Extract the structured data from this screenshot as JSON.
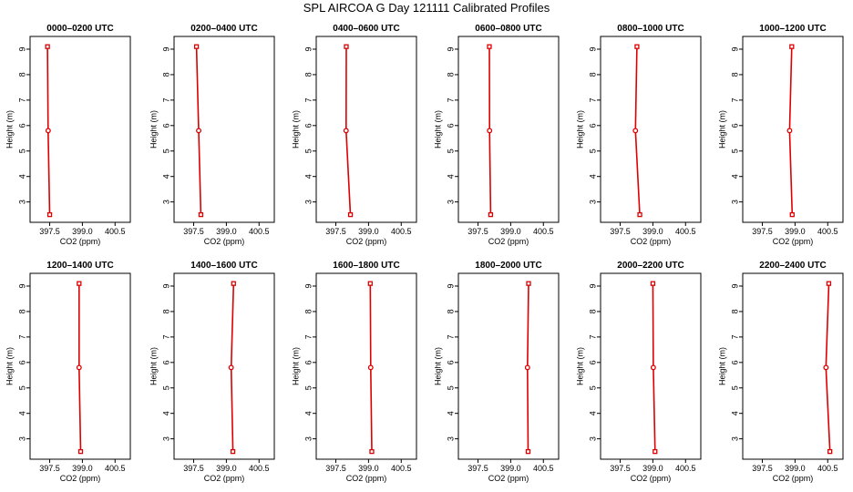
{
  "title": "SPL AIRCOA G  Day 121111  Calibrated Profiles",
  "chart_data": [
    {
      "type": "line",
      "title": "0000–0200 UTC",
      "xlabel": "CO2 (ppm)",
      "ylabel": "Height (m)",
      "xlim": [
        396.6,
        401.2
      ],
      "ylim": [
        2.2,
        9.5
      ],
      "xticks": [
        "397.5",
        "399.0",
        "400.5"
      ],
      "yticks": [
        "3",
        "4",
        "5",
        "6",
        "7",
        "8",
        "9"
      ],
      "x": [
        397.5,
        397.43,
        397.4
      ],
      "y": [
        2.5,
        5.8,
        9.1
      ],
      "markers": [
        "square",
        "circle",
        "square"
      ]
    },
    {
      "type": "line",
      "title": "0200–0400 UTC",
      "xlabel": "CO2 (ppm)",
      "ylabel": "Height (m)",
      "xlim": [
        396.6,
        401.2
      ],
      "ylim": [
        2.2,
        9.5
      ],
      "xticks": [
        "397.5",
        "399.0",
        "400.5"
      ],
      "yticks": [
        "3",
        "4",
        "5",
        "6",
        "7",
        "8",
        "9"
      ],
      "x": [
        397.83,
        397.73,
        397.63
      ],
      "y": [
        2.5,
        5.8,
        9.1
      ],
      "markers": [
        "square",
        "circle",
        "square"
      ]
    },
    {
      "type": "line",
      "title": "0400–0600 UTC",
      "xlabel": "CO2 (ppm)",
      "ylabel": "Height (m)",
      "xlim": [
        396.6,
        401.2
      ],
      "ylim": [
        2.2,
        9.5
      ],
      "xticks": [
        "397.5",
        "399.0",
        "400.5"
      ],
      "yticks": [
        "3",
        "4",
        "5",
        "6",
        "7",
        "8",
        "9"
      ],
      "x": [
        398.17,
        397.97,
        397.98
      ],
      "y": [
        2.5,
        5.8,
        9.1
      ],
      "markers": [
        "square",
        "circle",
        "square"
      ]
    },
    {
      "type": "line",
      "title": "0600–0800 UTC",
      "xlabel": "CO2 (ppm)",
      "ylabel": "Height (m)",
      "xlim": [
        396.6,
        401.2
      ],
      "ylim": [
        2.2,
        9.5
      ],
      "xticks": [
        "397.5",
        "399.0",
        "400.5"
      ],
      "yticks": [
        "3",
        "4",
        "5",
        "6",
        "7",
        "8",
        "9"
      ],
      "x": [
        398.08,
        398.03,
        398.02
      ],
      "y": [
        2.5,
        5.8,
        9.1
      ],
      "markers": [
        "square",
        "circle",
        "square"
      ]
    },
    {
      "type": "line",
      "title": "0800–1000 UTC",
      "xlabel": "CO2 (ppm)",
      "ylabel": "Height (m)",
      "xlim": [
        396.6,
        401.2
      ],
      "ylim": [
        2.2,
        9.5
      ],
      "xticks": [
        "397.5",
        "399.0",
        "400.5"
      ],
      "yticks": [
        "3",
        "4",
        "5",
        "6",
        "7",
        "8",
        "9"
      ],
      "x": [
        398.4,
        398.2,
        398.27
      ],
      "y": [
        2.5,
        5.8,
        9.1
      ],
      "markers": [
        "square",
        "circle",
        "square"
      ]
    },
    {
      "type": "line",
      "title": "1000–1200 UTC",
      "xlabel": "CO2 (ppm)",
      "ylabel": "Height (m)",
      "xlim": [
        396.6,
        401.2
      ],
      "ylim": [
        2.2,
        9.5
      ],
      "xticks": [
        "397.5",
        "399.0",
        "400.5"
      ],
      "yticks": [
        "3",
        "4",
        "5",
        "6",
        "7",
        "8",
        "9"
      ],
      "x": [
        398.87,
        398.75,
        398.85
      ],
      "y": [
        2.5,
        5.8,
        9.1
      ],
      "markers": [
        "square",
        "circle",
        "square"
      ]
    },
    {
      "type": "line",
      "title": "1200–1400 UTC",
      "xlabel": "CO2 (ppm)",
      "ylabel": "Height (m)",
      "xlim": [
        396.6,
        401.2
      ],
      "ylim": [
        2.2,
        9.5
      ],
      "xticks": [
        "397.5",
        "399.0",
        "400.5"
      ],
      "yticks": [
        "3",
        "4",
        "5",
        "6",
        "7",
        "8",
        "9"
      ],
      "x": [
        398.92,
        398.85,
        398.85
      ],
      "y": [
        2.5,
        5.8,
        9.1
      ],
      "markers": [
        "square",
        "circle",
        "square"
      ]
    },
    {
      "type": "line",
      "title": "1400–1600 UTC",
      "xlabel": "CO2 (ppm)",
      "ylabel": "Height (m)",
      "xlim": [
        396.6,
        401.2
      ],
      "ylim": [
        2.2,
        9.5
      ],
      "xticks": [
        "397.5",
        "399.0",
        "400.5"
      ],
      "yticks": [
        "3",
        "4",
        "5",
        "6",
        "7",
        "8",
        "9"
      ],
      "x": [
        399.3,
        399.22,
        399.33
      ],
      "y": [
        2.5,
        5.8,
        9.1
      ],
      "markers": [
        "square",
        "circle",
        "square"
      ]
    },
    {
      "type": "line",
      "title": "1600–1800 UTC",
      "xlabel": "CO2 (ppm)",
      "ylabel": "Height (m)",
      "xlim": [
        396.6,
        401.2
      ],
      "ylim": [
        2.2,
        9.5
      ],
      "xticks": [
        "397.5",
        "399.0",
        "400.5"
      ],
      "yticks": [
        "3",
        "4",
        "5",
        "6",
        "7",
        "8",
        "9"
      ],
      "x": [
        399.15,
        399.1,
        399.08
      ],
      "y": [
        2.5,
        5.8,
        9.1
      ],
      "markers": [
        "square",
        "circle",
        "square"
      ]
    },
    {
      "type": "line",
      "title": "1800–2000 UTC",
      "xlabel": "CO2 (ppm)",
      "ylabel": "Height (m)",
      "xlim": [
        396.6,
        401.2
      ],
      "ylim": [
        2.2,
        9.5
      ],
      "xticks": [
        "397.5",
        "399.0",
        "400.5"
      ],
      "yticks": [
        "3",
        "4",
        "5",
        "6",
        "7",
        "8",
        "9"
      ],
      "x": [
        399.8,
        399.77,
        399.82
      ],
      "y": [
        2.5,
        5.8,
        9.1
      ],
      "markers": [
        "square",
        "circle",
        "square"
      ]
    },
    {
      "type": "line",
      "title": "2000–2200 UTC",
      "xlabel": "CO2 (ppm)",
      "ylabel": "Height (m)",
      "xlim": [
        396.6,
        401.2
      ],
      "ylim": [
        2.2,
        9.5
      ],
      "xticks": [
        "397.5",
        "399.0",
        "400.5"
      ],
      "yticks": [
        "3",
        "4",
        "5",
        "6",
        "7",
        "8",
        "9"
      ],
      "x": [
        399.1,
        399.02,
        399.0
      ],
      "y": [
        2.5,
        5.8,
        9.1
      ],
      "markers": [
        "square",
        "circle",
        "square"
      ]
    },
    {
      "type": "line",
      "title": "2200–2400 UTC",
      "xlabel": "CO2 (ppm)",
      "ylabel": "Height (m)",
      "xlim": [
        396.6,
        401.2
      ],
      "ylim": [
        2.2,
        9.5
      ],
      "xticks": [
        "397.5",
        "399.0",
        "400.5"
      ],
      "yticks": [
        "3",
        "4",
        "5",
        "6",
        "7",
        "8",
        "9"
      ],
      "x": [
        400.6,
        400.42,
        400.55
      ],
      "y": [
        2.5,
        5.8,
        9.1
      ],
      "markers": [
        "square",
        "circle",
        "square"
      ]
    }
  ],
  "colors": {
    "series": "#dd0000",
    "axis": "#000000",
    "background": "#ffffff"
  }
}
